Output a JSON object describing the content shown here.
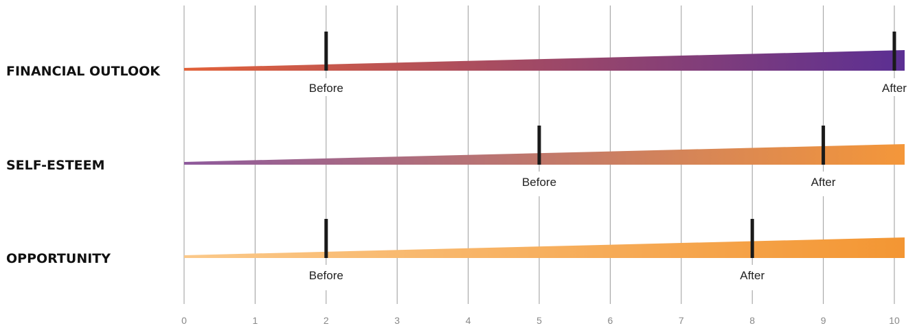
{
  "chart_data": {
    "type": "bar",
    "title": "",
    "xlabel": "",
    "ylabel": "",
    "xlim": [
      0,
      10
    ],
    "x_ticks": [
      "0",
      "1",
      "2",
      "3",
      "4",
      "5",
      "6",
      "7",
      "8",
      "9",
      "10"
    ],
    "grid": true,
    "rows": [
      {
        "label": "FINANCIAL OUTLOOK",
        "before": 2,
        "after": 10,
        "before_label": "Before",
        "after_label": "After",
        "gradient": [
          "#e2623a",
          "#5b2f93"
        ]
      },
      {
        "label": "SELF-ESTEEM",
        "before": 5,
        "after": 9,
        "before_label": "Before",
        "after_label": "After",
        "gradient": [
          "#8e5a9c",
          "#f4973a"
        ]
      },
      {
        "label": "OPPORTUNITY",
        "before": 2,
        "after": 8,
        "before_label": "Before",
        "after_label": "After",
        "gradient": [
          "#fbc98a",
          "#f39633"
        ]
      }
    ]
  }
}
